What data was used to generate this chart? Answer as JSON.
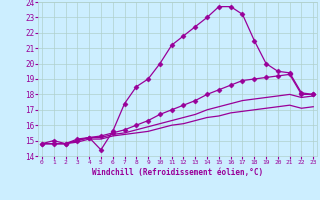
{
  "xlabel": "Windchill (Refroidissement éolien,°C)",
  "bg_color": "#cceeff",
  "grid_color": "#b0d0cc",
  "line_color": "#990099",
  "xmin": 0,
  "xmax": 23,
  "ymin": 14,
  "ymax": 24,
  "lines": [
    {
      "x": [
        0,
        1,
        2,
        3,
        4,
        5,
        6,
        7,
        8,
        9,
        10,
        11,
        12,
        13,
        14,
        15,
        16,
        17,
        18,
        19,
        20,
        21,
        22,
        23
      ],
      "y": [
        14.8,
        15.0,
        14.8,
        15.1,
        15.2,
        14.4,
        15.6,
        17.4,
        18.5,
        19.0,
        20.0,
        21.2,
        21.8,
        22.4,
        23.0,
        23.7,
        23.7,
        23.2,
        21.5,
        20.0,
        19.5,
        19.4,
        18.1,
        18.0
      ],
      "marker": "D",
      "markersize": 2.5,
      "linewidth": 0.9
    },
    {
      "x": [
        0,
        1,
        2,
        3,
        4,
        5,
        6,
        7,
        8,
        9,
        10,
        11,
        12,
        13,
        14,
        15,
        16,
        17,
        18,
        19,
        20,
        21,
        22,
        23
      ],
      "y": [
        14.8,
        14.8,
        14.8,
        15.0,
        15.2,
        15.3,
        15.5,
        15.7,
        16.0,
        16.3,
        16.7,
        17.0,
        17.3,
        17.6,
        18.0,
        18.3,
        18.6,
        18.9,
        19.0,
        19.1,
        19.2,
        19.3,
        18.0,
        18.0
      ],
      "marker": "D",
      "markersize": 2.5,
      "linewidth": 0.9
    },
    {
      "x": [
        0,
        1,
        2,
        3,
        4,
        5,
        6,
        7,
        8,
        9,
        10,
        11,
        12,
        13,
        14,
        15,
        16,
        17,
        18,
        19,
        20,
        21,
        22,
        23
      ],
      "y": [
        14.8,
        14.8,
        14.8,
        15.0,
        15.2,
        15.2,
        15.4,
        15.5,
        15.7,
        15.9,
        16.1,
        16.3,
        16.5,
        16.7,
        17.0,
        17.2,
        17.4,
        17.6,
        17.7,
        17.8,
        17.9,
        18.0,
        17.8,
        17.9
      ],
      "marker": null,
      "markersize": 0,
      "linewidth": 0.9
    },
    {
      "x": [
        0,
        1,
        2,
        3,
        4,
        5,
        6,
        7,
        8,
        9,
        10,
        11,
        12,
        13,
        14,
        15,
        16,
        17,
        18,
        19,
        20,
        21,
        22,
        23
      ],
      "y": [
        14.8,
        14.8,
        14.8,
        14.9,
        15.1,
        15.1,
        15.3,
        15.4,
        15.5,
        15.6,
        15.8,
        16.0,
        16.1,
        16.3,
        16.5,
        16.6,
        16.8,
        16.9,
        17.0,
        17.1,
        17.2,
        17.3,
        17.1,
        17.2
      ],
      "marker": null,
      "markersize": 0,
      "linewidth": 0.9
    }
  ]
}
